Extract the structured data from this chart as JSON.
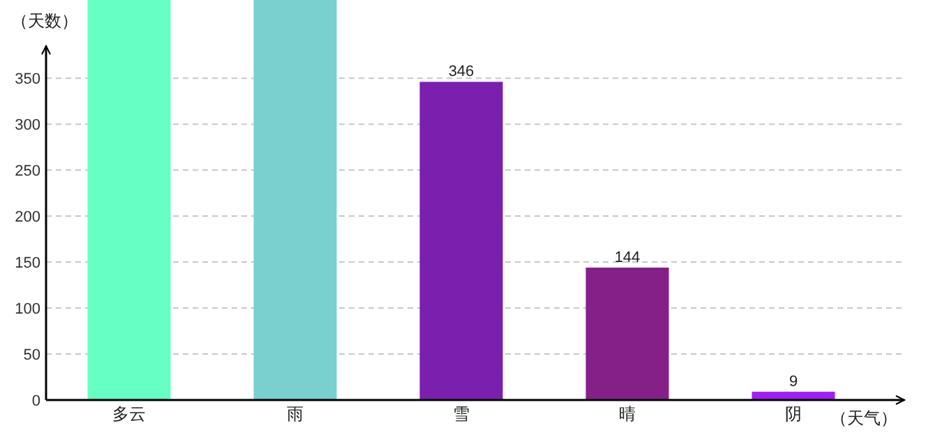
{
  "chart_data": {
    "type": "bar",
    "xlabel": "（天气）",
    "ylabel": "（天数）",
    "categories": [
      "多云",
      "雨",
      "雪",
      "晴",
      "阴"
    ],
    "values": [
      435,
      435,
      346,
      144,
      9
    ],
    "colors": [
      "#66ffc4",
      "#7acfcf",
      "#7b1faf",
      "#852088",
      "#a020f0"
    ],
    "value_labels": [
      null,
      null,
      "346",
      "144",
      "9"
    ],
    "ylim": [
      0,
      435
    ],
    "yticks": [
      0,
      50,
      100,
      150,
      200,
      250,
      300,
      350
    ],
    "grid": "y"
  }
}
